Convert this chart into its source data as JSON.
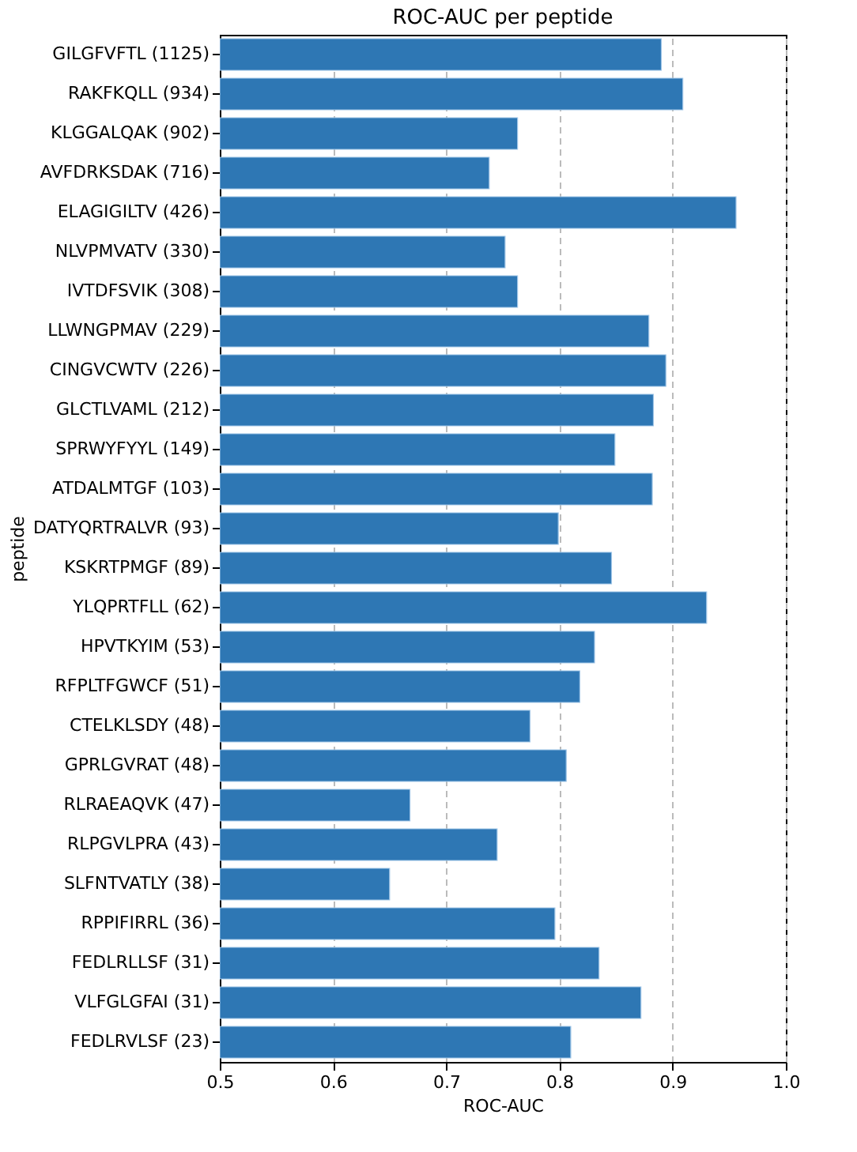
{
  "chart_data": {
    "type": "bar",
    "orientation": "horizontal",
    "title": "ROC-AUC per peptide",
    "xlabel": "ROC-AUC",
    "ylabel": "peptide",
    "categories": [
      "GILGFVFTL (1125)",
      "RAKFKQLL (934)",
      "KLGGALQAK (902)",
      "AVFDRKSDAK (716)",
      "ELAGIGILTV (426)",
      "NLVPMVATV (330)",
      "IVTDFSVIK (308)",
      "LLWNGPMAV (229)",
      "CINGVCWTV (226)",
      "GLCTLVAML (212)",
      "SPRWYFYYL (149)",
      "ATDALMTGF (103)",
      "DATYQRTRALVR (93)",
      "KSKRTPMGF (89)",
      "YLQPRTFLL (62)",
      "HPVTKYIM (53)",
      "RFPLTFGWCF (51)",
      "CTELKLSDY (48)",
      "GPRLGVRAT (48)",
      "RLRAEAQVK (47)",
      "RLPGVLPRA (43)",
      "SLFNTVATLY (38)",
      "RPPIFIRRL (36)",
      "FEDLRLLSF (31)",
      "VLFGLGFAI (31)",
      "FEDLRVLSF (23)"
    ],
    "values": [
      0.89,
      0.909,
      0.763,
      0.738,
      0.956,
      0.752,
      0.763,
      0.879,
      0.894,
      0.883,
      0.849,
      0.882,
      0.799,
      0.846,
      0.93,
      0.831,
      0.818,
      0.774,
      0.806,
      0.668,
      0.745,
      0.65,
      0.796,
      0.835,
      0.872,
      0.81
    ],
    "color": "#2e77b4",
    "xlim": [
      0.5,
      1.0
    ],
    "xticks": [
      0.5,
      0.6,
      0.7,
      0.8,
      0.9,
      {
        "value": 1.0,
        "label": "1.0"
      }
    ],
    "grid": "x",
    "line_style": "dashed"
  }
}
